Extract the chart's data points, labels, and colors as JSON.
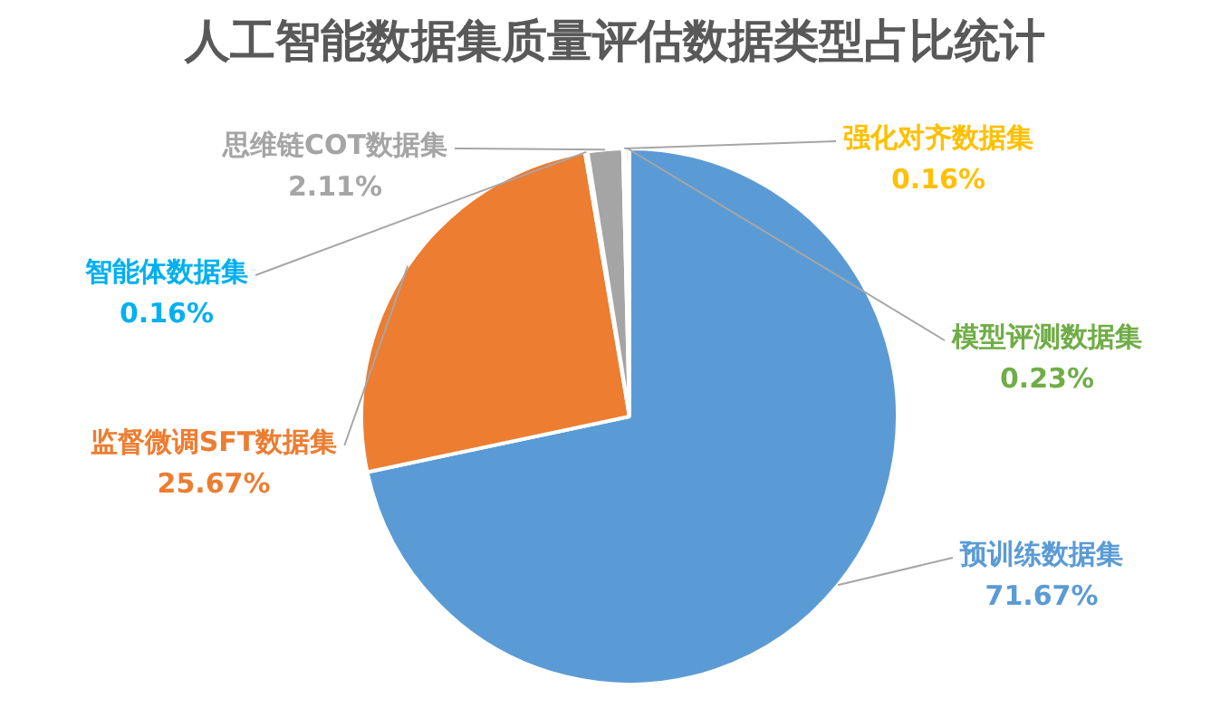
{
  "chart_data": {
    "type": "pie",
    "title": "人工智能数据集质量评估数据类型占比统计",
    "categories": [
      "预训练数据集",
      "监督微调SFT数据集",
      "智能体数据集",
      "思维链COT数据集",
      "强化对齐数据集",
      "模型评测数据集"
    ],
    "values": [
      71.67,
      25.67,
      0.16,
      2.11,
      0.16,
      0.23
    ],
    "colors": [
      "#5b9bd5",
      "#ed7d31",
      "#00b0f0",
      "#a5a5a5",
      "#ffc000",
      "#70ad47"
    ],
    "value_labels": [
      "71.67%",
      "25.67%",
      "0.16%",
      "2.11%",
      "0.16%",
      "0.23%"
    ],
    "legend": false
  }
}
